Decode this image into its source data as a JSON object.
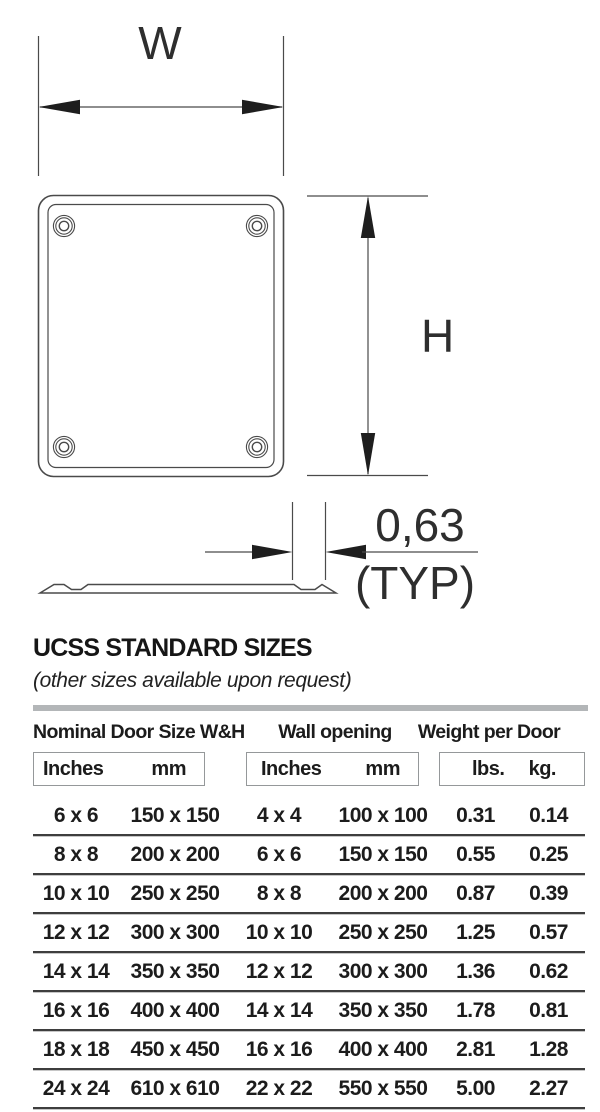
{
  "diagram": {
    "width_label": "W",
    "height_label": "H",
    "thickness_value": "0,63",
    "thickness_note": "(TYP)"
  },
  "table": {
    "title": "UCSS STANDARD SIZES",
    "subtitle": "(other sizes available upon request)",
    "column_groups": [
      {
        "label": "Nominal Door Size W&H",
        "sub": [
          "Inches",
          "mm"
        ]
      },
      {
        "label": "Wall opening",
        "sub": [
          "Inches",
          "mm"
        ]
      },
      {
        "label": "Weight per Door",
        "sub": [
          "lbs.",
          "kg."
        ]
      }
    ],
    "rows": [
      [
        "6 x 6",
        "150 x 150",
        "4 x 4",
        "100 x 100",
        "0.31",
        "0.14"
      ],
      [
        "8 x 8",
        "200 x 200",
        "6 x 6",
        "150 x 150",
        "0.55",
        "0.25"
      ],
      [
        "10 x 10",
        "250 x 250",
        "8 x 8",
        "200 x 200",
        "0.87",
        "0.39"
      ],
      [
        "12 x 12",
        "300 x 300",
        "10 x 10",
        "250 x 250",
        "1.25",
        "0.57"
      ],
      [
        "14 x 14",
        "350 x 350",
        "12 x 12",
        "300 x 300",
        "1.36",
        "0.62"
      ],
      [
        "16 x 16",
        "400 x 400",
        "14 x 14",
        "350 x 350",
        "1.78",
        "0.81"
      ],
      [
        "18 x 18",
        "450 x 450",
        "16 x 16",
        "400 x 400",
        "2.81",
        "1.28"
      ],
      [
        "24 x 24",
        "610 x 610",
        "22 x 22",
        "550 x 550",
        "5.00",
        "2.27"
      ]
    ],
    "colors": {
      "divider_gray": "#b3b6b8",
      "separator_dark": "#3e3e3e",
      "separator_light": "#c6c6c6",
      "line": "#4a4a4a"
    }
  }
}
